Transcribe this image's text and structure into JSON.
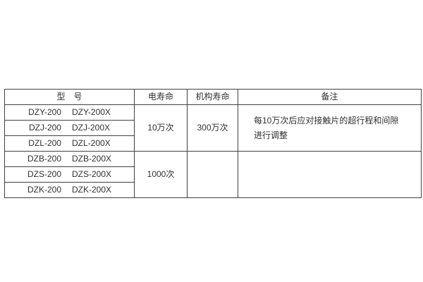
{
  "page": {
    "background_color": "#ffffff"
  },
  "table": {
    "colors": {
      "border": "#404040",
      "text": "#303030"
    },
    "headers": {
      "model": "型　号",
      "electrical_life": "电寿命",
      "mechanism_life": "机构寿命",
      "remarks": "备注"
    },
    "model_rows": [
      {
        "left": "DZY-200",
        "right": "DZY-200X"
      },
      {
        "left": "DZJ-200",
        "right": "DZJ-200X"
      },
      {
        "left": "DZL-200",
        "right": "DZL-200X"
      },
      {
        "left": "DZB-200",
        "right": "DZB-200X"
      },
      {
        "left": "DZS-200",
        "right": "DZS-200X"
      },
      {
        "left": "DZK-200",
        "right": "DZK-200X"
      }
    ],
    "groups": [
      {
        "electrical_life": "10万次",
        "mechanism_life": "300万次",
        "remark_line1": "每10万次后应对接触片的超行程和间隙",
        "remark_line2": "进行调整"
      },
      {
        "electrical_life": "1000次",
        "mechanism_life": "",
        "remark_line1": "",
        "remark_line2": ""
      }
    ]
  }
}
